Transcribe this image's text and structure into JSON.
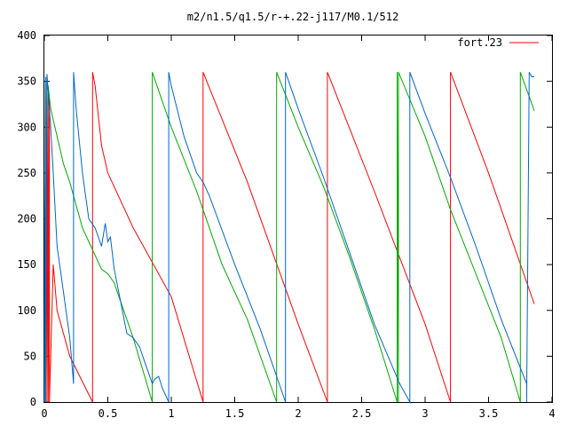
{
  "chart_data": {
    "type": "line",
    "title": "m2/n1.5/q1.5/r-+.22-j117/M0.1/512",
    "xlabel": "",
    "ylabel": "",
    "xlim": [
      0,
      4
    ],
    "ylim": [
      0,
      400
    ],
    "grid": false,
    "legend_position": "top-right",
    "x_ticks": [
      {
        "value": 0,
        "label": "0"
      },
      {
        "value": 0.5,
        "label": "0.5"
      },
      {
        "value": 1,
        "label": "1"
      },
      {
        "value": 1.5,
        "label": "1.5"
      },
      {
        "value": 2,
        "label": "2"
      },
      {
        "value": 2.5,
        "label": "2.5"
      },
      {
        "value": 3,
        "label": "3"
      },
      {
        "value": 3.5,
        "label": "3.5"
      },
      {
        "value": 4,
        "label": "4"
      }
    ],
    "y_ticks": [
      {
        "value": 0,
        "label": "0"
      },
      {
        "value": 50,
        "label": "50"
      },
      {
        "value": 100,
        "label": "100"
      },
      {
        "value": 150,
        "label": "150"
      },
      {
        "value": 200,
        "label": "200"
      },
      {
        "value": 250,
        "label": "250"
      },
      {
        "value": 300,
        "label": "300"
      },
      {
        "value": 350,
        "label": "350"
      },
      {
        "value": 400,
        "label": "400"
      }
    ],
    "series": [
      {
        "name": "fort.23",
        "color": "#ff0000",
        "x": [
          0.0,
          0.01,
          0.01,
          0.02,
          0.02,
          0.03,
          0.03,
          0.04,
          0.04,
          0.07,
          0.1,
          0.2,
          0.38,
          0.38,
          0.4,
          0.45,
          0.5,
          0.7,
          1.0,
          1.25,
          1.25,
          1.6,
          2.0,
          2.23,
          2.23,
          2.6,
          3.0,
          3.2,
          3.2,
          3.5,
          3.86
        ],
        "values": [
          0,
          310,
          0,
          330,
          0,
          340,
          0,
          330,
          0,
          150,
          100,
          50,
          0,
          360,
          345,
          280,
          250,
          190,
          115,
          0,
          360,
          240,
          85,
          0,
          360,
          230,
          85,
          0,
          360,
          250,
          107
        ]
      },
      {
        "name": "",
        "color": "#00aa00",
        "x": [
          0.0,
          0.01,
          0.01,
          0.02,
          0.02,
          0.03,
          0.05,
          0.1,
          0.15,
          0.2,
          0.3,
          0.4,
          0.45,
          0.5,
          0.55,
          0.6,
          0.7,
          0.85,
          0.85,
          1.0,
          1.2,
          1.4,
          1.6,
          1.83,
          1.83,
          2.0,
          2.2,
          2.4,
          2.6,
          2.78,
          2.78,
          2.79,
          2.79,
          3.0,
          3.2,
          3.4,
          3.6,
          3.75,
          3.75,
          3.86
        ],
        "values": [
          0,
          350,
          0,
          355,
          340,
          345,
          320,
          290,
          260,
          240,
          190,
          160,
          145,
          140,
          130,
          110,
          70,
          0,
          360,
          300,
          230,
          150,
          90,
          0,
          360,
          300,
          235,
          160,
          80,
          0,
          360,
          0,
          360,
          290,
          210,
          140,
          70,
          0,
          360,
          318
        ]
      },
      {
        "name": "",
        "color": "#0066cc",
        "x": [
          0.0,
          0.01,
          0.01,
          0.02,
          0.03,
          0.04,
          0.05,
          0.07,
          0.1,
          0.15,
          0.2,
          0.23,
          0.23,
          0.25,
          0.3,
          0.35,
          0.4,
          0.45,
          0.48,
          0.5,
          0.52,
          0.55,
          0.6,
          0.65,
          0.7,
          0.75,
          0.8,
          0.85,
          0.87,
          0.9,
          0.93,
          0.98,
          0.98,
          1.0,
          1.1,
          1.2,
          1.25,
          1.3,
          1.5,
          1.7,
          1.9,
          1.9,
          2.0,
          2.2,
          2.4,
          2.6,
          2.8,
          2.88,
          2.88,
          3.0,
          3.2,
          3.4,
          3.6,
          3.8,
          3.8,
          3.82,
          3.84,
          3.86
        ],
        "values": [
          0,
          355,
          0,
          358,
          340,
          320,
          300,
          250,
          170,
          120,
          70,
          20,
          360,
          320,
          250,
          200,
          190,
          170,
          195,
          175,
          180,
          145,
          110,
          75,
          70,
          60,
          40,
          20,
          25,
          28,
          15,
          0,
          360,
          345,
          290,
          250,
          240,
          225,
          150,
          80,
          0,
          360,
          320,
          245,
          165,
          85,
          20,
          0,
          360,
          315,
          245,
          170,
          90,
          20,
          0,
          360,
          355,
          355
        ]
      }
    ]
  }
}
